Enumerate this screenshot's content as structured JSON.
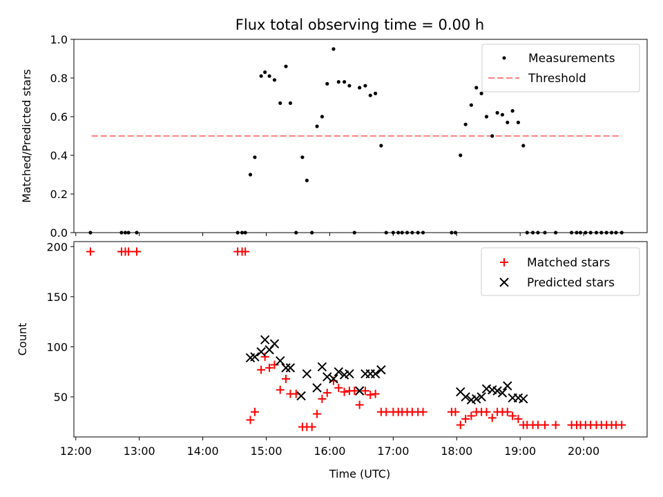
{
  "chart_data": [
    {
      "type": "scatter",
      "title": "Flux total observing time = 0.00 h",
      "ylabel": "Matched/Predicted stars",
      "xlabel": "",
      "xlim": [
        11.97,
        21.0
      ],
      "ylim": [
        0.0,
        1.0
      ],
      "yticks": [
        0.0,
        0.2,
        0.4,
        0.6,
        0.8,
        1.0
      ],
      "ytick_labels": [
        "0.0",
        "0.2",
        "0.4",
        "0.6",
        "0.8",
        "1.0"
      ],
      "legend_position": "upper right",
      "legend": [
        {
          "label": "Measurements",
          "marker": "dot",
          "color": "#000000"
        },
        {
          "label": "Threshold",
          "marker": "dashed-line",
          "color": "#ff7f7f"
        }
      ],
      "threshold": {
        "value": 0.5,
        "x": [
          12.25,
          20.6
        ],
        "color": "#ff7f7f"
      },
      "series": [
        {
          "name": "Measurements",
          "color": "#000000",
          "points": [
            [
              12.23,
              0.0
            ],
            [
              12.72,
              0.0
            ],
            [
              12.78,
              0.0
            ],
            [
              12.83,
              0.0
            ],
            [
              12.96,
              0.0
            ],
            [
              14.55,
              0.0
            ],
            [
              14.62,
              0.0
            ],
            [
              14.67,
              0.0
            ],
            [
              14.75,
              0.3
            ],
            [
              14.82,
              0.39
            ],
            [
              14.92,
              0.81
            ],
            [
              14.98,
              0.83
            ],
            [
              15.05,
              0.81
            ],
            [
              15.13,
              0.79
            ],
            [
              15.22,
              0.67
            ],
            [
              15.31,
              0.86
            ],
            [
              15.38,
              0.67
            ],
            [
              15.47,
              0.0
            ],
            [
              15.57,
              0.39
            ],
            [
              15.64,
              0.27
            ],
            [
              15.72,
              0.0
            ],
            [
              15.8,
              0.55
            ],
            [
              15.88,
              0.6
            ],
            [
              15.96,
              0.77
            ],
            [
              16.06,
              0.95
            ],
            [
              16.14,
              0.78
            ],
            [
              16.23,
              0.78
            ],
            [
              16.31,
              0.76
            ],
            [
              16.39,
              0.0
            ],
            [
              16.47,
              0.75
            ],
            [
              16.56,
              0.76
            ],
            [
              16.64,
              0.71
            ],
            [
              16.72,
              0.72
            ],
            [
              16.81,
              0.45
            ],
            [
              16.89,
              0.0
            ],
            [
              17.0,
              0.0
            ],
            [
              17.08,
              0.0
            ],
            [
              17.14,
              0.0
            ],
            [
              17.22,
              0.0
            ],
            [
              17.3,
              0.0
            ],
            [
              17.39,
              0.0
            ],
            [
              17.47,
              0.0
            ],
            [
              17.92,
              0.0
            ],
            [
              17.98,
              0.0
            ],
            [
              18.06,
              0.4
            ],
            [
              18.14,
              0.56
            ],
            [
              18.23,
              0.66
            ],
            [
              18.31,
              0.75
            ],
            [
              18.39,
              0.72
            ],
            [
              18.47,
              0.6
            ],
            [
              18.56,
              0.5
            ],
            [
              18.64,
              0.62
            ],
            [
              18.72,
              0.61
            ],
            [
              18.8,
              0.57
            ],
            [
              18.88,
              0.63
            ],
            [
              18.97,
              0.57
            ],
            [
              19.05,
              0.45
            ],
            [
              19.11,
              0.0
            ],
            [
              19.2,
              0.0
            ],
            [
              19.28,
              0.0
            ],
            [
              19.39,
              0.0
            ],
            [
              19.56,
              0.0
            ],
            [
              19.81,
              0.0
            ],
            [
              19.89,
              0.0
            ],
            [
              19.95,
              0.0
            ],
            [
              20.03,
              0.0
            ],
            [
              20.11,
              0.0
            ],
            [
              20.2,
              0.0
            ],
            [
              20.28,
              0.0
            ],
            [
              20.36,
              0.0
            ],
            [
              20.44,
              0.0
            ],
            [
              20.51,
              0.0
            ],
            [
              20.6,
              0.0
            ]
          ]
        }
      ]
    },
    {
      "type": "scatter",
      "title": "",
      "xlabel": "Time (UTC)",
      "ylabel": "Count",
      "xlim": [
        11.97,
        21.0
      ],
      "ylim": [
        10,
        205
      ],
      "xticks": [
        12,
        13,
        14,
        15,
        16,
        17,
        18,
        19,
        20
      ],
      "xtick_labels": [
        "12:00",
        "13:00",
        "14:00",
        "15:00",
        "16:00",
        "17:00",
        "18:00",
        "19:00",
        "20:00"
      ],
      "yticks": [
        50,
        100,
        150,
        200
      ],
      "ytick_labels": [
        "50",
        "100",
        "150",
        "200"
      ],
      "legend_position": "upper right",
      "legend": [
        {
          "label": "Matched stars",
          "marker": "plus",
          "color": "#ff0000"
        },
        {
          "label": "Predicted stars",
          "marker": "x",
          "color": "#000000"
        }
      ],
      "series": [
        {
          "name": "Matched stars",
          "marker": "plus",
          "color": "#ff0000",
          "points": [
            [
              12.23,
              195
            ],
            [
              12.72,
              195
            ],
            [
              12.78,
              195
            ],
            [
              12.83,
              195
            ],
            [
              12.96,
              195
            ],
            [
              14.55,
              195
            ],
            [
              14.62,
              195
            ],
            [
              14.67,
              195
            ],
            [
              14.75,
              27
            ],
            [
              14.82,
              35
            ],
            [
              14.92,
              77
            ],
            [
              14.98,
              90
            ],
            [
              15.05,
              79
            ],
            [
              15.13,
              82
            ],
            [
              15.22,
              57
            ],
            [
              15.31,
              68
            ],
            [
              15.38,
              53
            ],
            [
              15.47,
              53
            ],
            [
              15.57,
              20
            ],
            [
              15.64,
              20
            ],
            [
              15.72,
              20
            ],
            [
              15.8,
              33
            ],
            [
              15.88,
              48
            ],
            [
              15.96,
              54
            ],
            [
              16.06,
              66
            ],
            [
              16.14,
              59
            ],
            [
              16.23,
              55
            ],
            [
              16.31,
              56
            ],
            [
              16.39,
              56
            ],
            [
              16.47,
              42
            ],
            [
              16.56,
              56
            ],
            [
              16.64,
              52
            ],
            [
              16.72,
              53
            ],
            [
              16.81,
              35
            ],
            [
              16.89,
              35
            ],
            [
              17.0,
              35
            ],
            [
              17.08,
              35
            ],
            [
              17.14,
              35
            ],
            [
              17.22,
              35
            ],
            [
              17.3,
              35
            ],
            [
              17.39,
              35
            ],
            [
              17.47,
              35
            ],
            [
              17.92,
              35
            ],
            [
              17.98,
              35
            ],
            [
              18.06,
              22
            ],
            [
              18.14,
              28
            ],
            [
              18.23,
              31
            ],
            [
              18.31,
              35
            ],
            [
              18.39,
              35
            ],
            [
              18.47,
              35
            ],
            [
              18.56,
              29
            ],
            [
              18.64,
              35
            ],
            [
              18.72,
              35
            ],
            [
              18.8,
              35
            ],
            [
              18.88,
              31
            ],
            [
              18.97,
              28
            ],
            [
              19.05,
              22
            ],
            [
              19.11,
              22
            ],
            [
              19.2,
              22
            ],
            [
              19.28,
              22
            ],
            [
              19.39,
              22
            ],
            [
              19.56,
              22
            ],
            [
              19.81,
              22
            ],
            [
              19.89,
              22
            ],
            [
              19.95,
              22
            ],
            [
              20.03,
              22
            ],
            [
              20.11,
              22
            ],
            [
              20.2,
              22
            ],
            [
              20.28,
              22
            ],
            [
              20.36,
              22
            ],
            [
              20.44,
              22
            ],
            [
              20.51,
              22
            ],
            [
              20.6,
              22
            ]
          ]
        },
        {
          "name": "Predicted stars",
          "marker": "x",
          "color": "#000000",
          "points": [
            [
              14.75,
              89
            ],
            [
              14.82,
              90
            ],
            [
              14.92,
              95
            ],
            [
              14.98,
              107
            ],
            [
              15.05,
              97
            ],
            [
              15.13,
              103
            ],
            [
              15.22,
              86
            ],
            [
              15.31,
              79
            ],
            [
              15.38,
              79
            ],
            [
              15.55,
              51
            ],
            [
              15.64,
              73
            ],
            [
              15.8,
              59
            ],
            [
              15.88,
              80
            ],
            [
              15.96,
              70
            ],
            [
              16.06,
              68
            ],
            [
              16.14,
              75
            ],
            [
              16.23,
              72
            ],
            [
              16.31,
              73
            ],
            [
              16.47,
              56
            ],
            [
              16.56,
              73
            ],
            [
              16.64,
              73
            ],
            [
              16.72,
              73
            ],
            [
              16.81,
              77
            ],
            [
              18.06,
              55
            ],
            [
              18.14,
              50
            ],
            [
              18.23,
              47
            ],
            [
              18.31,
              48
            ],
            [
              18.39,
              50
            ],
            [
              18.47,
              58
            ],
            [
              18.56,
              57
            ],
            [
              18.64,
              56
            ],
            [
              18.72,
              54
            ],
            [
              18.8,
              61
            ],
            [
              18.88,
              49
            ],
            [
              18.97,
              49
            ],
            [
              19.05,
              48
            ]
          ]
        }
      ]
    }
  ]
}
